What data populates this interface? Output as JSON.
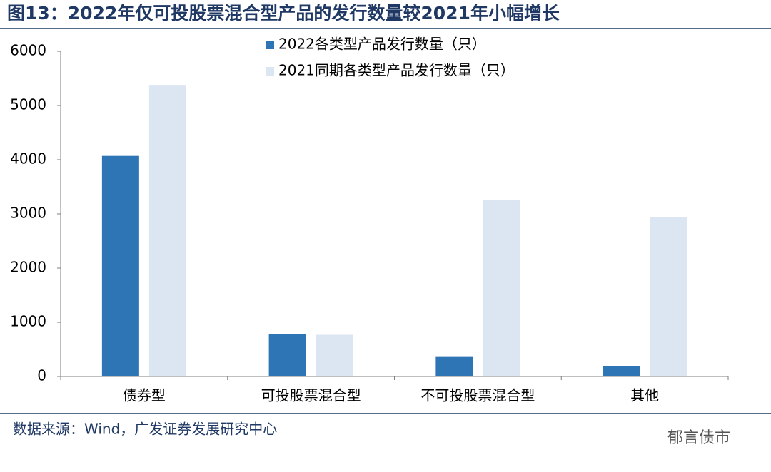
{
  "chart_data": {
    "type": "bar",
    "title": "图13：2022年仅可投股票混合型产品的发行数量较2021年小幅增长",
    "categories": [
      "债券型",
      "可投股票混合型",
      "不可投股票混合型",
      "其他"
    ],
    "series": [
      {
        "name": "2022各类型产品发行数量（只）",
        "color": "#2e75b6",
        "values": [
          4070,
          780,
          360,
          190
        ]
      },
      {
        "name": "2021同期各类型产品发行数量（只）",
        "color": "#dce6f2",
        "values": [
          5380,
          770,
          3260,
          2940
        ]
      }
    ],
    "ylim": [
      0,
      6000
    ],
    "yticks": [
      0,
      1000,
      2000,
      3000,
      4000,
      5000,
      6000
    ],
    "grid": false,
    "legend": "top",
    "source": "数据来源：Wind，广发证券发展研究中心",
    "watermark": "郁言债市"
  }
}
